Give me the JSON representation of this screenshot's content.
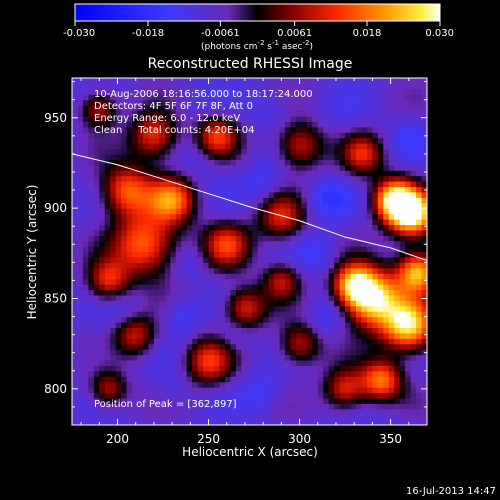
{
  "colorbar": {
    "ticks": [
      "-0.030",
      "-0.018",
      "-0.0061",
      "0.0061",
      "0.018",
      "0.030"
    ],
    "tick_values": [
      -0.03,
      -0.018,
      -0.0061,
      0.0061,
      0.018,
      0.03
    ],
    "min": -0.03,
    "max": 0.03,
    "unit_main": "(photons cm",
    "unit_sup1": "-2",
    "unit_mid": " s",
    "unit_sup2": "-1",
    "unit_end": " asec",
    "unit_sup3": "-2",
    "unit_close": ")"
  },
  "chart_data": {
    "type": "heatmap",
    "title": "Reconstructed RHESSI Image",
    "xlabel": "Heliocentric X (arcsec)",
    "ylabel": "Heliocentric Y (arcsec)",
    "xlim": [
      175,
      370
    ],
    "ylim": [
      780,
      972
    ],
    "x_ticks": [
      200,
      250,
      300,
      350
    ],
    "y_ticks": [
      800,
      850,
      900,
      950
    ],
    "annotations": [
      "10-Aug-2006 18:16:56.000 to 18:17:24.000",
      "Detectors: 4F 5F 6F 7F 8F, Att 0",
      "Energy Range: 6.0 - 12.0 keV",
      "Clean     Total counts: 4.20E+04",
      "Position of Peak = [362,897]"
    ],
    "peak": [
      362,
      897
    ],
    "limb_curve": {
      "x": [
        175,
        200,
        225,
        250,
        275,
        300,
        325,
        350,
        370
      ],
      "y": [
        930,
        924,
        916,
        908,
        900,
        893,
        884,
        878,
        871
      ]
    },
    "blobs": [
      {
        "x": 362,
        "y": 897,
        "v": 0.03,
        "s": 9
      },
      {
        "x": 352,
        "y": 905,
        "v": 0.026,
        "s": 8
      },
      {
        "x": 340,
        "y": 850,
        "v": 0.028,
        "s": 11
      },
      {
        "x": 360,
        "y": 835,
        "v": 0.027,
        "s": 10
      },
      {
        "x": 365,
        "y": 865,
        "v": 0.024,
        "s": 8
      },
      {
        "x": 330,
        "y": 858,
        "v": 0.02,
        "s": 8
      },
      {
        "x": 215,
        "y": 880,
        "v": 0.018,
        "s": 12
      },
      {
        "x": 205,
        "y": 910,
        "v": 0.016,
        "s": 10
      },
      {
        "x": 230,
        "y": 905,
        "v": 0.017,
        "s": 9
      },
      {
        "x": 220,
        "y": 940,
        "v": 0.014,
        "s": 9
      },
      {
        "x": 255,
        "y": 940,
        "v": 0.012,
        "s": 8
      },
      {
        "x": 300,
        "y": 935,
        "v": 0.011,
        "s": 9
      },
      {
        "x": 335,
        "y": 930,
        "v": 0.01,
        "s": 8
      },
      {
        "x": 195,
        "y": 860,
        "v": 0.012,
        "s": 8
      },
      {
        "x": 260,
        "y": 880,
        "v": 0.012,
        "s": 9
      },
      {
        "x": 290,
        "y": 895,
        "v": 0.01,
        "s": 9
      },
      {
        "x": 270,
        "y": 845,
        "v": 0.012,
        "s": 8
      },
      {
        "x": 210,
        "y": 830,
        "v": 0.01,
        "s": 8
      },
      {
        "x": 250,
        "y": 815,
        "v": 0.012,
        "s": 9
      },
      {
        "x": 300,
        "y": 825,
        "v": 0.01,
        "s": 8
      },
      {
        "x": 290,
        "y": 860,
        "v": 0.008,
        "s": 7
      },
      {
        "x": 195,
        "y": 800,
        "v": 0.009,
        "s": 7
      },
      {
        "x": 325,
        "y": 800,
        "v": 0.012,
        "s": 8
      },
      {
        "x": 345,
        "y": 805,
        "v": 0.018,
        "s": 8
      },
      {
        "x": 190,
        "y": 955,
        "v": 0.01,
        "s": 7
      },
      {
        "x": 240,
        "y": 960,
        "v": -0.01,
        "s": 8
      },
      {
        "x": 285,
        "y": 955,
        "v": -0.012,
        "s": 9
      },
      {
        "x": 320,
        "y": 950,
        "v": -0.01,
        "s": 8
      },
      {
        "x": 245,
        "y": 925,
        "v": -0.012,
        "s": 8
      },
      {
        "x": 280,
        "y": 915,
        "v": -0.014,
        "s": 8
      },
      {
        "x": 315,
        "y": 905,
        "v": -0.016,
        "s": 8
      },
      {
        "x": 240,
        "y": 870,
        "v": -0.012,
        "s": 7
      },
      {
        "x": 310,
        "y": 875,
        "v": -0.014,
        "s": 8
      },
      {
        "x": 205,
        "y": 845,
        "v": -0.012,
        "s": 8
      },
      {
        "x": 235,
        "y": 840,
        "v": -0.014,
        "s": 7
      },
      {
        "x": 265,
        "y": 830,
        "v": -0.012,
        "s": 7
      },
      {
        "x": 315,
        "y": 840,
        "v": -0.014,
        "s": 8
      },
      {
        "x": 230,
        "y": 800,
        "v": -0.012,
        "s": 8
      },
      {
        "x": 280,
        "y": 798,
        "v": -0.014,
        "s": 8
      },
      {
        "x": 360,
        "y": 940,
        "v": -0.012,
        "s": 8
      },
      {
        "x": 190,
        "y": 820,
        "v": -0.01,
        "s": 7
      },
      {
        "x": 350,
        "y": 785,
        "v": -0.01,
        "s": 7
      }
    ]
  },
  "footer": {
    "timestamp": "16-Jul-2013 14:47"
  }
}
